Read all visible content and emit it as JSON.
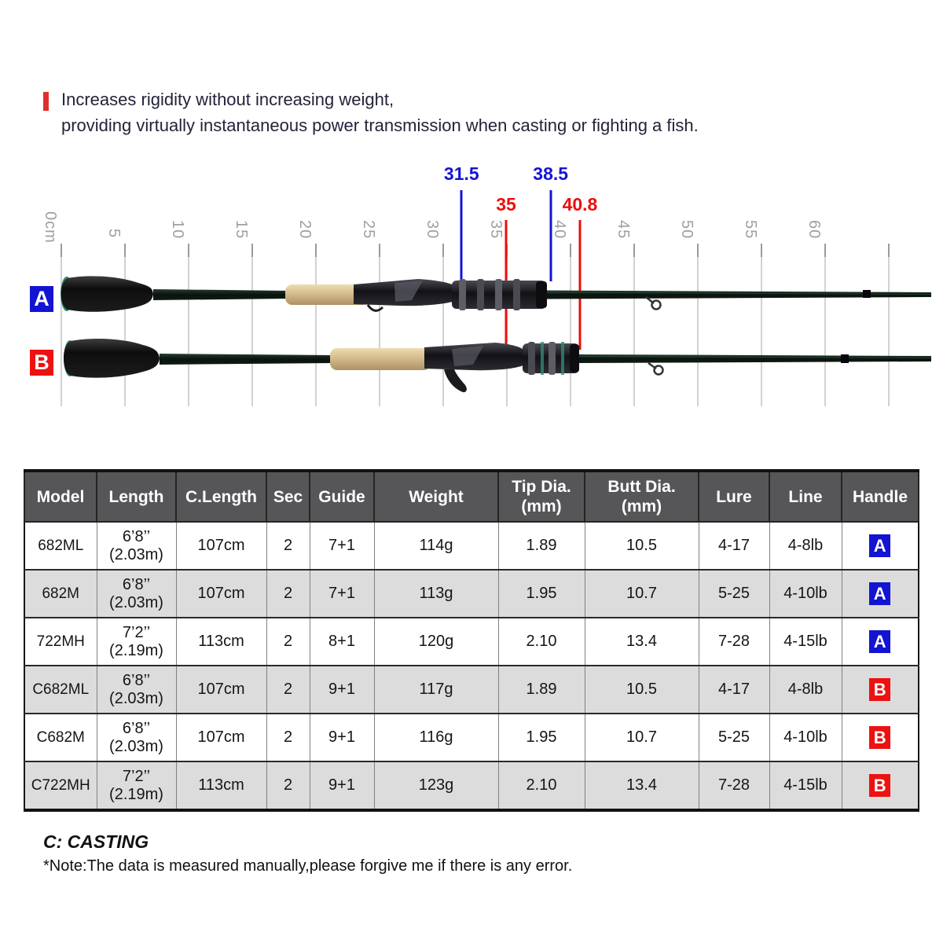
{
  "header": {
    "line1": "Increases rigidity without increasing weight,",
    "line2": "providing virtually instantaneous power transmission when casting or fighting a fish."
  },
  "diagram": {
    "ruler_labels": [
      "0cm",
      "5",
      "10",
      "15",
      "20",
      "25",
      "30",
      "35",
      "40",
      "45",
      "50",
      "55",
      "60"
    ],
    "measurements": [
      {
        "value": "31.5",
        "cm": 31.5,
        "color": "blue",
        "rod": "A"
      },
      {
        "value": "35",
        "cm": 35.0,
        "color": "red",
        "rod": "B"
      },
      {
        "value": "38.5",
        "cm": 38.5,
        "color": "blue",
        "rod": "A"
      },
      {
        "value": "40.8",
        "cm": 40.8,
        "color": "red",
        "rod": "B"
      }
    ],
    "rod_labels": {
      "a": "A",
      "b": "B"
    }
  },
  "table": {
    "headers": {
      "model": "Model",
      "length": "Length",
      "c_length": "C.Length",
      "sec": "Sec",
      "guide": "Guide",
      "weight": "Weight",
      "tip_dia_1": "Tip Dia.",
      "tip_dia_2": "(mm)",
      "butt_dia_1": "Butt Dia.",
      "butt_dia_2": "(mm)",
      "lure": "Lure",
      "line": "Line",
      "handle": "Handle"
    },
    "rows": [
      {
        "model": "682ML",
        "length_ft": "6’8’’",
        "length_m": "(2.03m)",
        "c_length": "107cm",
        "sec": "2",
        "guide": "7+1",
        "weight": "114g",
        "tip_dia": "1.89",
        "butt_dia": "10.5",
        "lure": "4-17",
        "line": "4-8lb",
        "handle": "A"
      },
      {
        "model": "682M",
        "length_ft": "6’8’’",
        "length_m": "(2.03m)",
        "c_length": "107cm",
        "sec": "2",
        "guide": "7+1",
        "weight": "113g",
        "tip_dia": "1.95",
        "butt_dia": "10.7",
        "lure": "5-25",
        "line": "4-10lb",
        "handle": "A"
      },
      {
        "model": "722MH",
        "length_ft": "7’2’’",
        "length_m": "(2.19m)",
        "c_length": "113cm",
        "sec": "2",
        "guide": "8+1",
        "weight": "120g",
        "tip_dia": "2.10",
        "butt_dia": "13.4",
        "lure": "7-28",
        "line": "4-15lb",
        "handle": "A"
      },
      {
        "model": "C682ML",
        "length_ft": "6’8’’",
        "length_m": "(2.03m)",
        "c_length": "107cm",
        "sec": "2",
        "guide": "9+1",
        "weight": "117g",
        "tip_dia": "1.89",
        "butt_dia": "10.5",
        "lure": "4-17",
        "line": "4-8lb",
        "handle": "B"
      },
      {
        "model": "C682M",
        "length_ft": "6’8’’",
        "length_m": "(2.03m)",
        "c_length": "107cm",
        "sec": "2",
        "guide": "9+1",
        "weight": "116g",
        "tip_dia": "1.95",
        "butt_dia": "10.7",
        "lure": "5-25",
        "line": "4-10lb",
        "handle": "B"
      },
      {
        "model": "C722MH",
        "length_ft": "7’2’’",
        "length_m": "(2.19m)",
        "c_length": "113cm",
        "sec": "2",
        "guide": "9+1",
        "weight": "123g",
        "tip_dia": "2.10",
        "butt_dia": "13.4",
        "lure": "7-28",
        "line": "4-15lb",
        "handle": "B"
      }
    ]
  },
  "footer": {
    "casting_note": "C: CASTING",
    "note": "*Note:The data is measured manually,please forgive me if there is any error."
  },
  "colors": {
    "accent_red": "#e0302c",
    "annotation_blue": "#1414d2",
    "annotation_red": "#ee0d0d",
    "badge_a_bg": "#1313d2",
    "badge_b_bg": "#ee1111",
    "table_header_bg": "#565659",
    "table_alt_row_bg": "#dcdcdc",
    "ruler_gray": "#9b9b9b",
    "cork": "#d9c194",
    "rod_grip_black": "#141414",
    "rod_butt_ring_teal": "#2f8a74"
  }
}
